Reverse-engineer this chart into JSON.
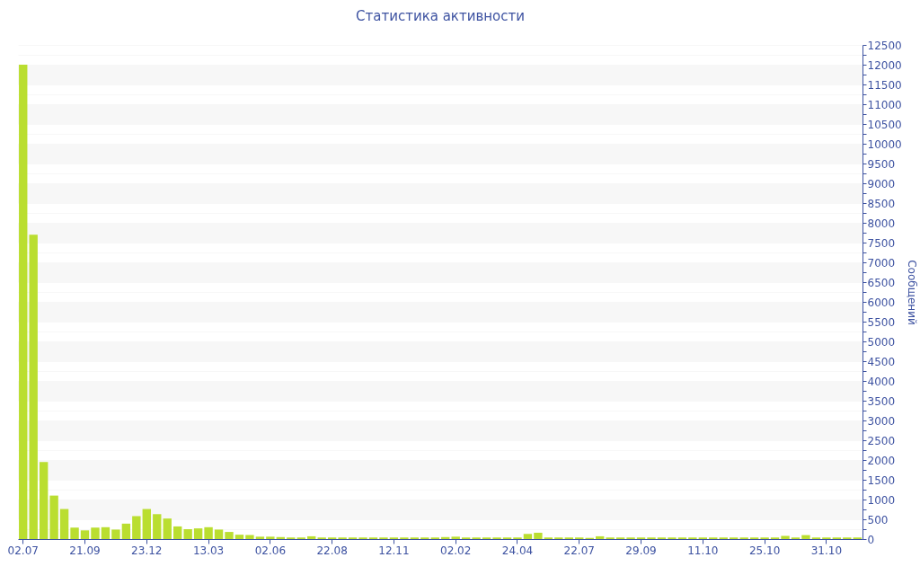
{
  "chart_data": {
    "type": "bar",
    "title": "Статистика активности",
    "ylabel": "Сообщений",
    "categories": [
      "02.07",
      null,
      null,
      null,
      null,
      null,
      "21.09",
      null,
      null,
      null,
      null,
      null,
      "23.12",
      null,
      null,
      null,
      null,
      null,
      "13.03",
      null,
      null,
      null,
      null,
      null,
      "02.06",
      null,
      null,
      null,
      null,
      null,
      "22.08",
      null,
      null,
      null,
      null,
      null,
      "12.11",
      null,
      null,
      null,
      null,
      null,
      "02.02",
      null,
      null,
      null,
      null,
      null,
      "24.04",
      null,
      null,
      null,
      null,
      null,
      "22.07",
      null,
      null,
      null,
      null,
      null,
      "29.09",
      null,
      null,
      null,
      null,
      null,
      "11.10",
      null,
      null,
      null,
      null,
      null,
      "25.10",
      null,
      null,
      null,
      null,
      null,
      "31.10",
      null,
      null,
      null
    ],
    "values": [
      12000,
      7700,
      1950,
      1100,
      760,
      290,
      220,
      290,
      300,
      240,
      390,
      580,
      760,
      630,
      520,
      320,
      250,
      270,
      300,
      240,
      180,
      110,
      100,
      60,
      60,
      50,
      40,
      40,
      70,
      40,
      40,
      40,
      40,
      40,
      40,
      40,
      40,
      40,
      40,
      40,
      40,
      50,
      60,
      40,
      40,
      40,
      40,
      40,
      40,
      130,
      160,
      40,
      40,
      40,
      40,
      30,
      70,
      40,
      40,
      40,
      40,
      40,
      40,
      40,
      40,
      40,
      40,
      40,
      40,
      40,
      40,
      40,
      40,
      40,
      80,
      40,
      100,
      40,
      40,
      40,
      40,
      40
    ],
    "color": "#bade30",
    "ylim": [
      0,
      12500
    ],
    "yticks": [
      0,
      {
        "value": 250,
        "label": null
      },
      500,
      {
        "value": 750,
        "label": null
      },
      1000,
      {
        "value": 1250,
        "label": null
      },
      1500,
      {
        "value": 1750,
        "label": null
      },
      2000,
      {
        "value": 2250,
        "label": null
      },
      2500,
      {
        "value": 2750,
        "label": null
      },
      3000,
      {
        "value": 3250,
        "label": null
      },
      3500,
      {
        "value": 3750,
        "label": null
      },
      4000,
      {
        "value": 4250,
        "label": null
      },
      4500,
      {
        "value": 4750,
        "label": null
      },
      5000,
      {
        "value": 5250,
        "label": null
      },
      5500,
      {
        "value": 5750,
        "label": null
      },
      6000,
      {
        "value": 6250,
        "label": null
      },
      6500,
      {
        "value": 6750,
        "label": null
      },
      7000,
      {
        "value": 7250,
        "label": null
      },
      7500,
      {
        "value": 7750,
        "label": null
      },
      8000,
      {
        "value": 8250,
        "label": null
      },
      8500,
      {
        "value": 8750,
        "label": null
      },
      9000,
      {
        "value": 9250,
        "label": null
      },
      9500,
      {
        "value": 9750,
        "label": null
      },
      10000,
      {
        "value": 10250,
        "label": null
      },
      10500,
      {
        "value": 10750,
        "label": null
      },
      11000,
      {
        "value": 11250,
        "label": null
      },
      11500,
      {
        "value": 11750,
        "label": null
      },
      12000,
      {
        "value": 12250,
        "label": null
      },
      12500
    ],
    "grid": "y"
  }
}
